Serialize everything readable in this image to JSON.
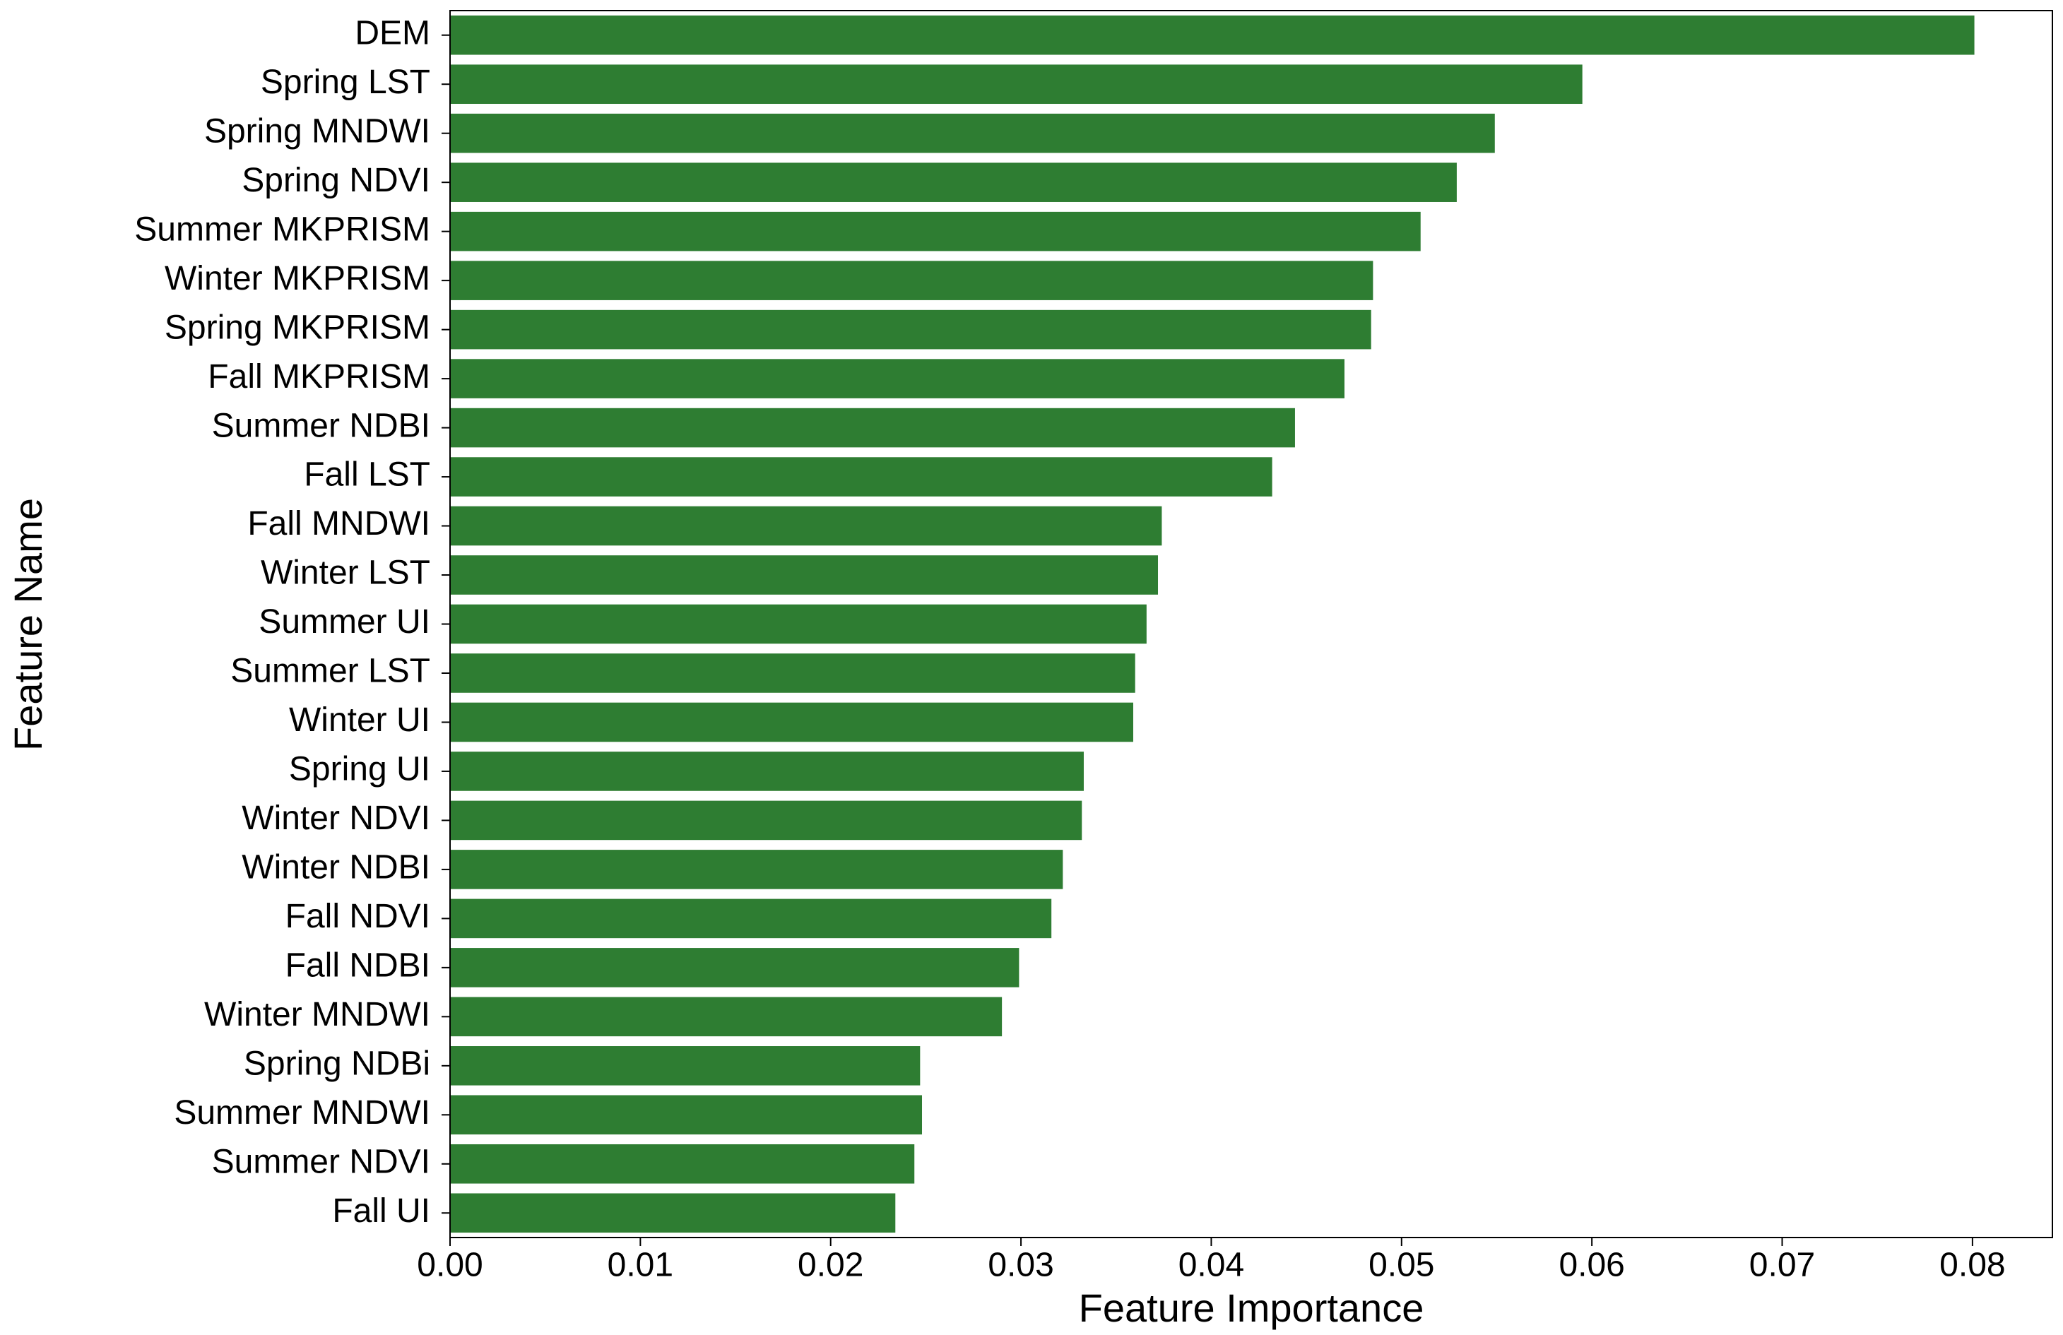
{
  "chart_data": {
    "type": "bar",
    "orientation": "horizontal",
    "x_label": "Feature Importance",
    "y_label": "Feature Name",
    "categories": [
      "DEM",
      "Spring LST",
      "Spring MNDWI",
      "Spring NDVI",
      "Summer MKPRISM",
      "Winter MKPRISM",
      "Spring MKPRISM",
      "Fall MKPRISM",
      "Summer NDBI",
      "Fall LST",
      "Fall MNDWI",
      "Winter LST",
      "Summer UI",
      "Summer LST",
      "Winter UI",
      "Spring UI",
      "Winter NDVI",
      "Winter NDBI",
      "Fall NDVI",
      "Fall NDBI",
      "Winter MNDWI",
      "Spring NDBi",
      "Summer MNDWI",
      "Summer NDVI",
      "Fall UI"
    ],
    "values": [
      0.0801,
      0.0595,
      0.0549,
      0.0529,
      0.051,
      0.0485,
      0.0484,
      0.047,
      0.0444,
      0.0432,
      0.0374,
      0.0372,
      0.0366,
      0.036,
      0.0359,
      0.0333,
      0.0332,
      0.0322,
      0.0316,
      0.0299,
      0.029,
      0.0247,
      0.0248,
      0.0244,
      0.0234
    ],
    "color": "#2e7d32",
    "xlim": [
      0,
      0.0842
    ],
    "xticks": [
      {
        "value": 0,
        "label": "0.00"
      },
      0.01,
      0.02,
      0.03,
      0.04,
      0.05,
      0.06,
      0.07,
      0.08
    ],
    "grid": false
  }
}
